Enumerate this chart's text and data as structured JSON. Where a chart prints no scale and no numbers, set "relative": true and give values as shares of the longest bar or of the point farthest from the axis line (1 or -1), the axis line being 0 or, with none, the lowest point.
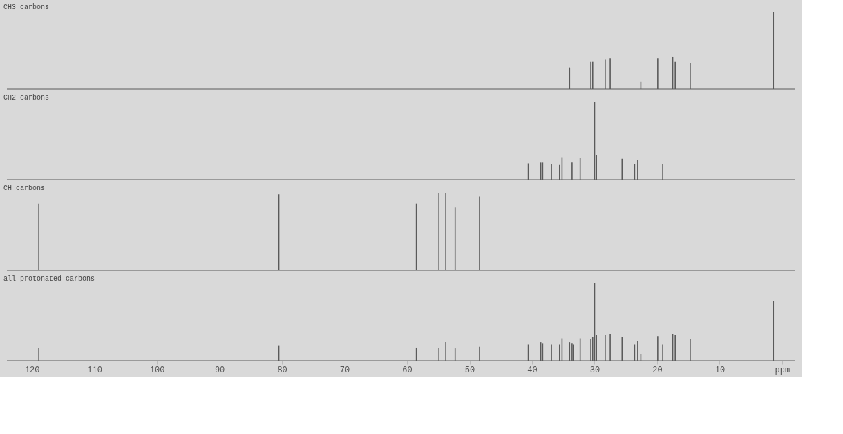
{
  "chart_data": [
    {
      "type": "bar",
      "title": "CH3 carbons",
      "relative": true,
      "color": "#5a5a5a",
      "xlim": [
        124,
        -2
      ],
      "tick_labels": false,
      "x": [
        34.0,
        30.6,
        30.3,
        28.3,
        27.5,
        22.6,
        19.9,
        17.5,
        17.1,
        14.7,
        1.4
      ],
      "values": [
        0.28,
        0.36,
        0.36,
        0.38,
        0.4,
        0.1,
        0.4,
        0.42,
        0.36,
        0.34,
        1.0
      ]
    },
    {
      "type": "bar",
      "title": "CH2 carbons",
      "relative": true,
      "color": "#5a5a5a",
      "xlim": [
        124,
        -2
      ],
      "tick_labels": false,
      "x": [
        40.6,
        38.6,
        38.3,
        36.9,
        35.6,
        35.2,
        33.6,
        32.3,
        30.0,
        29.7,
        25.6,
        23.6,
        23.1,
        19.1
      ],
      "values": [
        0.21,
        0.22,
        0.22,
        0.2,
        0.19,
        0.29,
        0.22,
        0.28,
        1.0,
        0.32,
        0.27,
        0.2,
        0.25,
        0.2
      ]
    },
    {
      "type": "bar",
      "title": "CH carbons",
      "relative": true,
      "color": "#5a5a5a",
      "xlim": [
        124,
        -2
      ],
      "tick_labels": false,
      "x": [
        118.9,
        80.5,
        58.5,
        54.9,
        53.8,
        52.3,
        48.4
      ],
      "values": [
        0.86,
        0.98,
        0.86,
        1.0,
        1.0,
        0.81,
        0.95
      ]
    },
    {
      "type": "bar",
      "title": "all protonated carbons",
      "relative": true,
      "color": "#5a5a5a",
      "xlim": [
        124,
        -2
      ],
      "xticks": [
        120,
        110,
        100,
        90,
        80,
        70,
        60,
        50,
        40,
        30,
        20,
        10,
        {
          "value": 0,
          "label": "ppm"
        }
      ],
      "tick_labels": "x",
      "x": [
        118.9,
        80.5,
        58.5,
        54.9,
        53.8,
        52.3,
        48.4,
        40.6,
        38.6,
        38.3,
        36.9,
        35.6,
        35.2,
        34.0,
        33.6,
        33.4,
        32.3,
        30.6,
        30.3,
        30.0,
        29.7,
        28.3,
        27.5,
        25.6,
        23.6,
        23.1,
        22.6,
        19.9,
        19.1,
        17.5,
        17.1,
        14.7,
        1.4
      ],
      "values": [
        0.16,
        0.2,
        0.17,
        0.17,
        0.24,
        0.16,
        0.18,
        0.21,
        0.24,
        0.22,
        0.21,
        0.21,
        0.29,
        0.24,
        0.22,
        0.21,
        0.29,
        0.28,
        0.31,
        1.0,
        0.33,
        0.33,
        0.34,
        0.31,
        0.21,
        0.25,
        0.09,
        0.32,
        0.21,
        0.34,
        0.33,
        0.28,
        0.77
      ]
    }
  ]
}
